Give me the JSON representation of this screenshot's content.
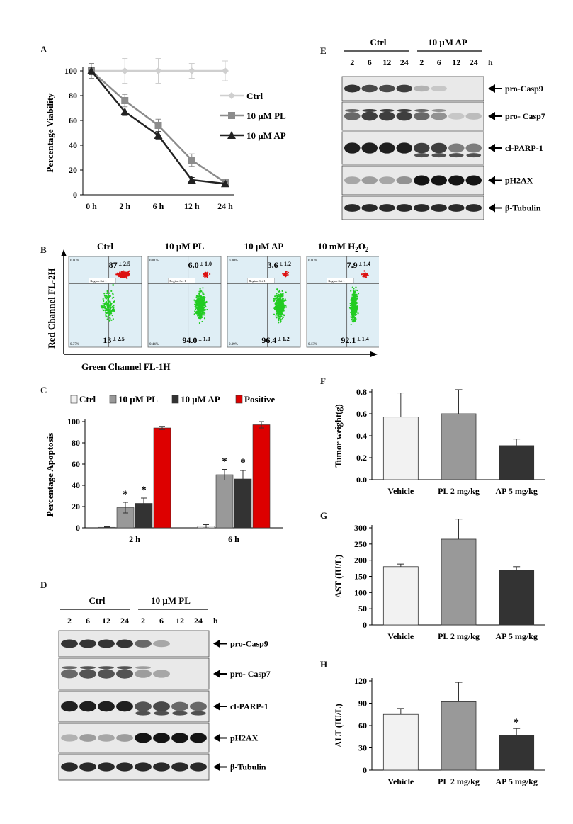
{
  "panel_labels": {
    "A": "A",
    "B": "B",
    "C": "C",
    "D": "D",
    "E": "E",
    "F": "F",
    "G": "G",
    "H": "H"
  },
  "colors": {
    "ctrl": "#f2f2f2",
    "pl": "#999999",
    "ap": "#333333",
    "positive": "#dd0000",
    "line_ctrl": "#cfcfcf",
    "line_pl": "#8c8c8c",
    "line_ap": "#222222",
    "flow_bg": "#dfeef5",
    "flow_green": "#22cc22",
    "flow_red": "#dd1111"
  },
  "panel_A": {
    "chart_data": {
      "type": "line",
      "categories": [
        "0 h",
        "2 h",
        "6 h",
        "12 h",
        "24 h"
      ],
      "ylabel": "Percentage Viability",
      "ylim": [
        0,
        100
      ],
      "yticks": [
        "0",
        "20",
        "40",
        "60",
        "80",
        "100"
      ],
      "series": [
        {
          "name": "Ctrl",
          "values": [
            100,
            100,
            100,
            100,
            100
          ],
          "err": [
            6,
            10,
            10,
            6,
            8
          ]
        },
        {
          "name": "10 μM PL",
          "values": [
            100,
            76,
            56,
            28,
            10
          ],
          "err": [
            6,
            5,
            5,
            5,
            2
          ]
        },
        {
          "name": "10 μM AP",
          "values": [
            100,
            67,
            48,
            12,
            9
          ],
          "err": [
            3,
            3,
            3,
            2,
            2
          ]
        }
      ]
    }
  },
  "panel_B": {
    "xlabel": "Green Channel FL-1H",
    "ylabel": "Red Channel FL-2H",
    "plots": [
      {
        "title": "Ctrl",
        "top": "87",
        "top_err": "± 2.5",
        "bottom": "13",
        "bottom_err": "± 2.5",
        "corner": "0.00%",
        "corner_bl": "0.37%",
        "region": "Region Set 1",
        "red_top": true
      },
      {
        "title": "10 μM PL",
        "top": "6.0",
        "top_err": "± 1.0",
        "bottom": "94.0",
        "bottom_err": "± 1.0",
        "corner": "0.01%",
        "corner_bl": "0.44%",
        "region": "Region Set 1",
        "red_top": false
      },
      {
        "title": "10 μM AP",
        "top": "3.6",
        "top_err": "± 1.2",
        "bottom": "96.4",
        "bottom_err": "± 1.2",
        "corner": "0.00%",
        "corner_bl": "0.39%",
        "region": "Region Set 1",
        "red_top": false
      },
      {
        "title": "10 mM H",
        "title_sub": "2",
        "title_mid": "O",
        "title_sub2": "2",
        "top": "7.9",
        "top_err": "± 1.4",
        "bottom": "92.1",
        "bottom_err": "± 1.4",
        "corner": "0.00%",
        "corner_bl": "0.13%",
        "region": "Region Set 1",
        "red_top": false
      }
    ]
  },
  "panel_C": {
    "chart_data": {
      "type": "bar",
      "categories": [
        "2 h",
        "6 h"
      ],
      "ylabel": "Percentage Apoptosis",
      "ylim": [
        0,
        100
      ],
      "yticks": [
        "0",
        "20",
        "40",
        "60",
        "80",
        "100"
      ],
      "series": [
        {
          "name": "Ctrl",
          "values": [
            0.5,
            1.5
          ],
          "err": [
            0.5,
            1.5
          ]
        },
        {
          "name": "10 μM PL",
          "values": [
            19,
            50
          ],
          "err": [
            5,
            5
          ]
        },
        {
          "name": "10 μM AP",
          "values": [
            23,
            46
          ],
          "err": [
            5,
            8
          ]
        },
        {
          "name": "Positive",
          "values": [
            94,
            97
          ],
          "err": [
            1.5,
            3
          ]
        }
      ],
      "significance": "*"
    }
  },
  "panel_D": {
    "group1": "Ctrl",
    "group2": "10 μM PL",
    "times": [
      "2",
      "6",
      "12",
      "24",
      "2",
      "6",
      "12",
      "24"
    ],
    "unit": "h",
    "bands": [
      "pro-Casp9",
      "pro- Casp7",
      "cl-PARP-1",
      "pH2AX",
      "β-Tubulin"
    ]
  },
  "panel_E": {
    "group1": "Ctrl",
    "group2": "10 μM AP",
    "times": [
      "2",
      "6",
      "12",
      "24",
      "2",
      "6",
      "12",
      "24"
    ],
    "unit": "h",
    "bands": [
      "pro-Casp9",
      "pro- Casp7",
      "cl-PARP-1",
      "pH2AX",
      "β-Tubulin"
    ]
  },
  "panel_F": {
    "chart_data": {
      "type": "bar",
      "categories": [
        "Vehicle",
        "PL 2 mg/kg",
        "AP 5 mg/kg"
      ],
      "values": [
        0.57,
        0.6,
        0.31
      ],
      "err": [
        0.22,
        0.22,
        0.06
      ],
      "ylabel": "Tumor weight(g)",
      "ylim": [
        0,
        0.8
      ],
      "yticks": [
        "0.0",
        "0.2",
        "0.4",
        "0.6",
        "0.8"
      ]
    }
  },
  "panel_G": {
    "chart_data": {
      "type": "bar",
      "categories": [
        "Vehicle",
        "PL 2 mg/kg",
        "AP 5 mg/kg"
      ],
      "values": [
        180,
        265,
        168
      ],
      "err": [
        8,
        62,
        12
      ],
      "ylabel": "AST (IU/L)",
      "ylim": [
        0,
        300
      ],
      "yticks": [
        "0",
        "50",
        "100",
        "150",
        "200",
        "250",
        "300"
      ]
    }
  },
  "panel_H": {
    "chart_data": {
      "type": "bar",
      "categories": [
        "Vehicle",
        "PL 2 mg/kg",
        "AP 5 mg/kg"
      ],
      "values": [
        75,
        92,
        47
      ],
      "err": [
        8,
        26,
        9
      ],
      "ylabel": "ALT (IU/L)",
      "ylim": [
        0,
        120
      ],
      "yticks": [
        "0",
        "30",
        "60",
        "90",
        "120"
      ],
      "significance": "*"
    }
  }
}
